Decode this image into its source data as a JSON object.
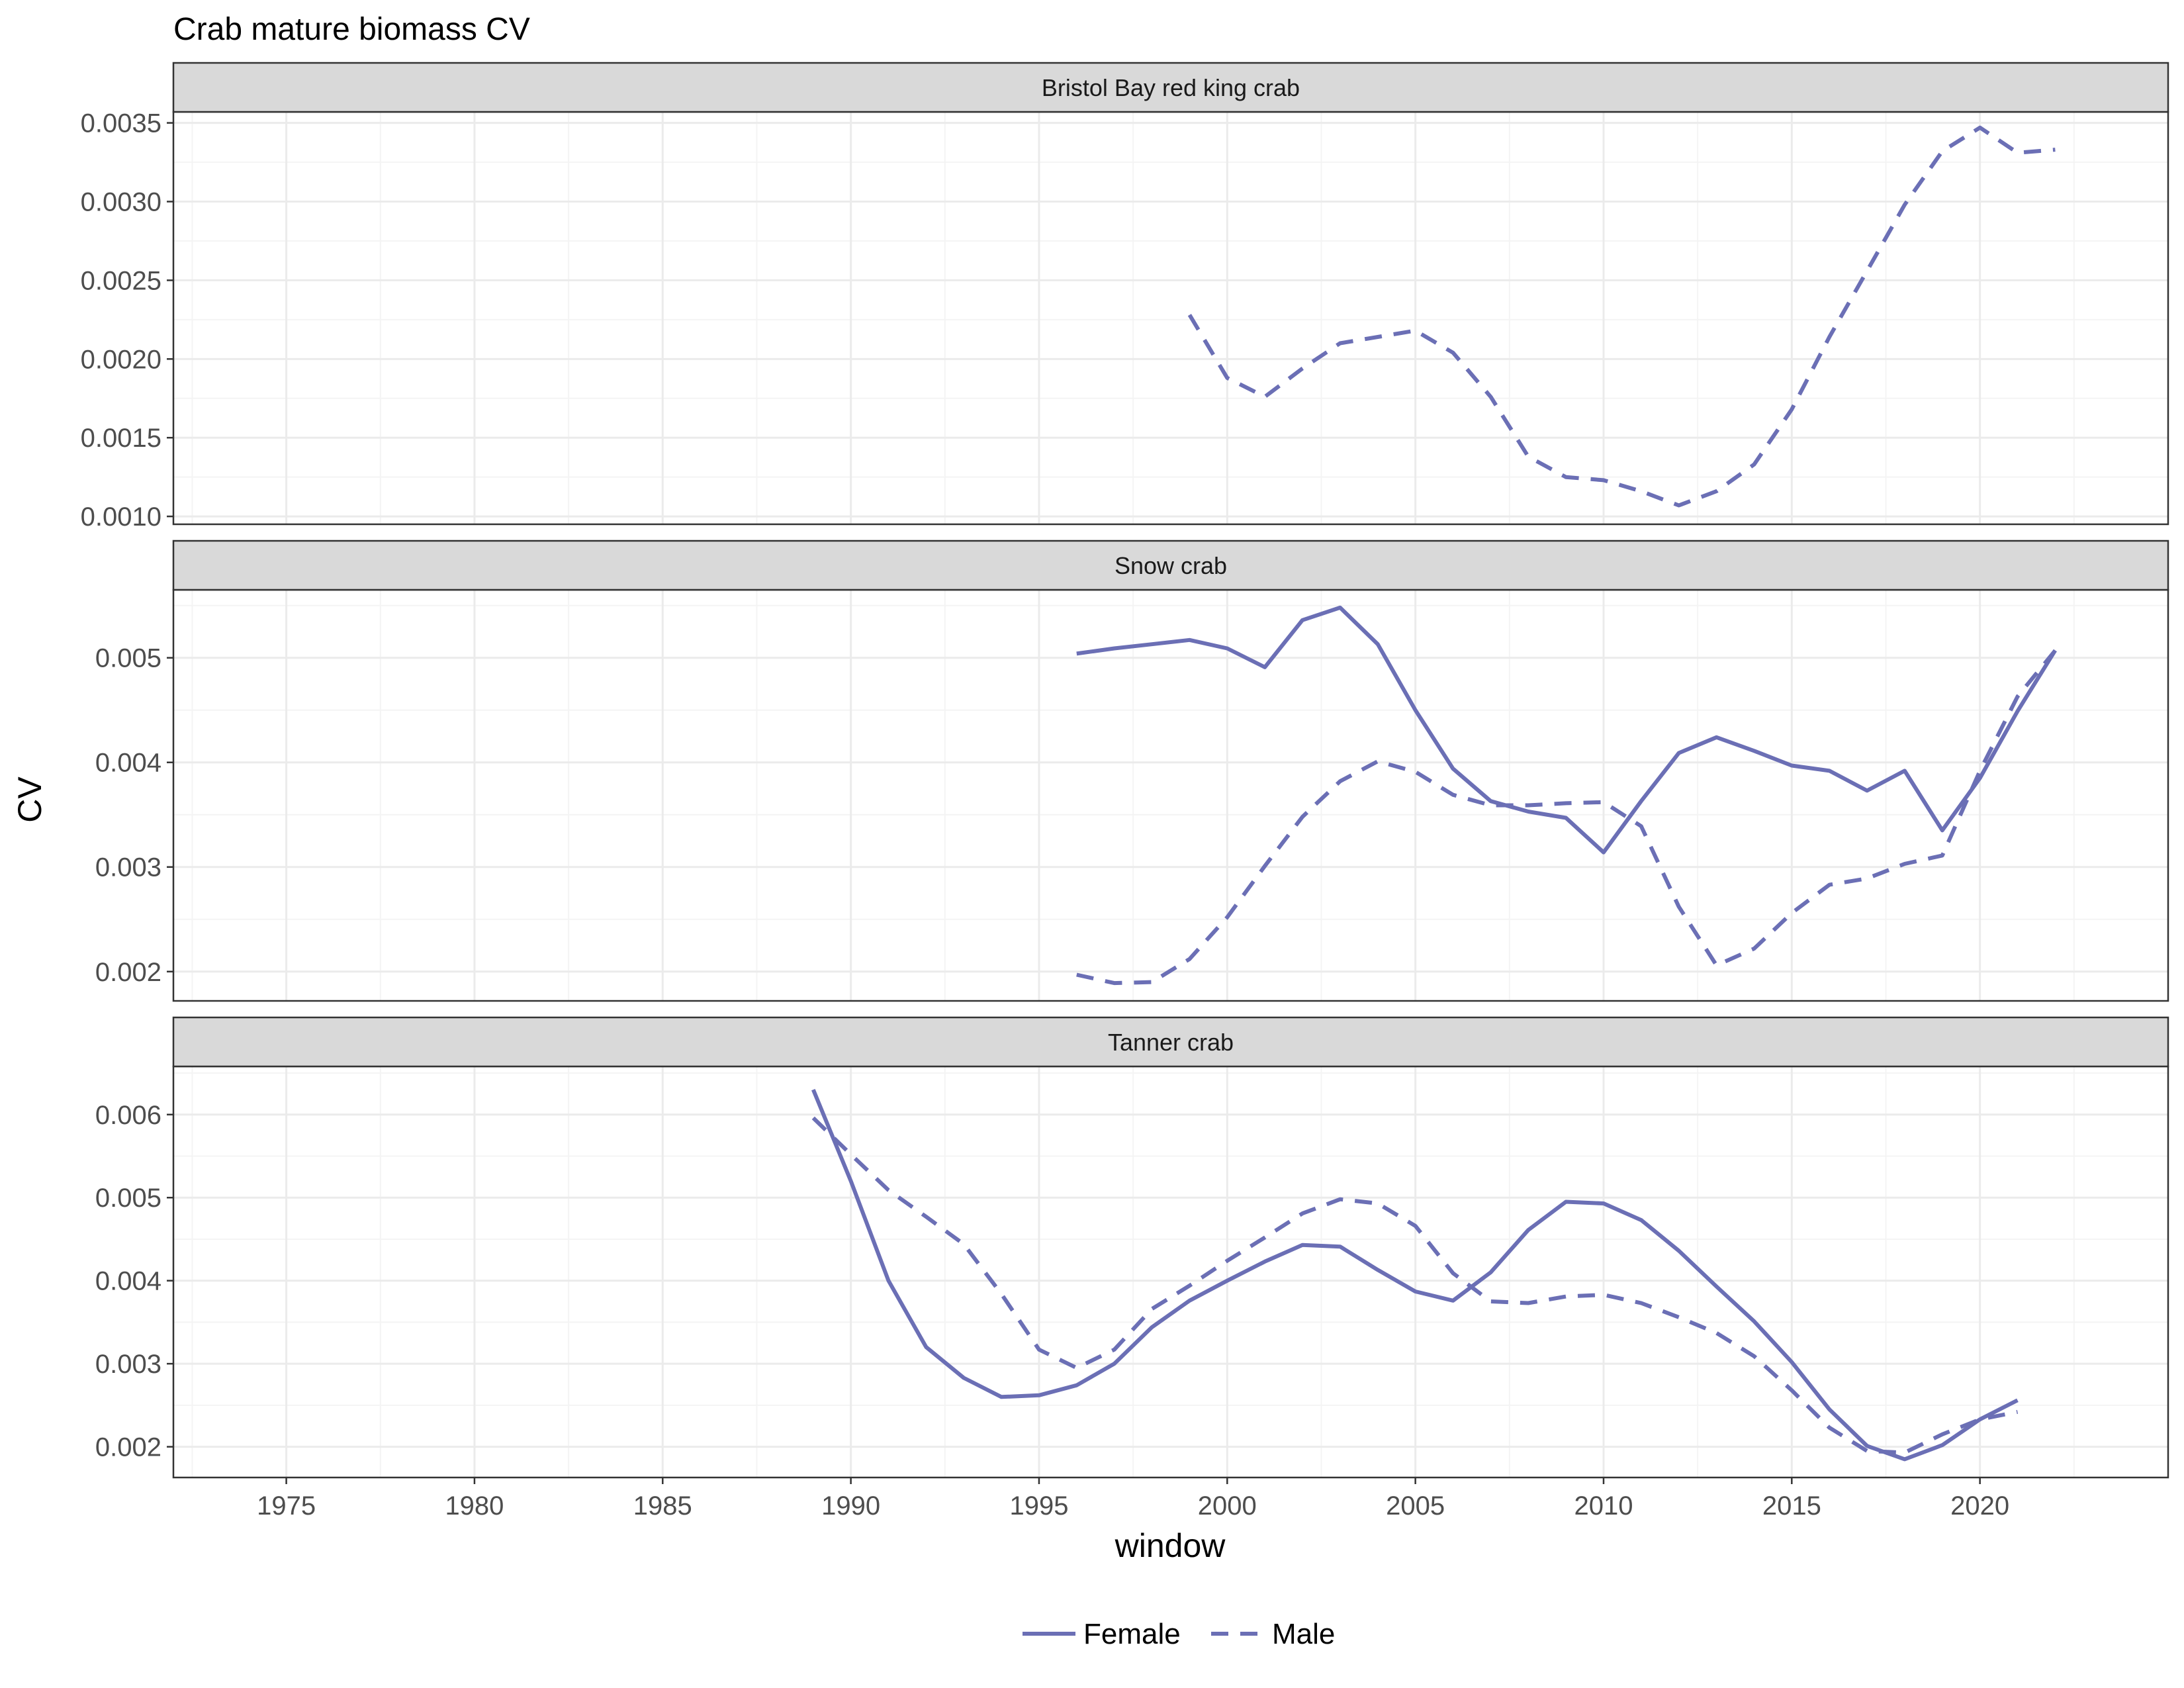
{
  "chart_data": {
    "type": "line",
    "title": "Crab mature biomass CV",
    "xlabel": "window",
    "ylabel": "CV",
    "xlim": [
      1972,
      2025
    ],
    "x_ticks": [
      1975,
      1980,
      1985,
      1990,
      1995,
      2000,
      2005,
      2010,
      2015,
      2020
    ],
    "grid": true,
    "legend_position": "bottom",
    "color": "#6b6fb5",
    "legend": [
      {
        "name": "Female",
        "dash": "solid"
      },
      {
        "name": "Male",
        "dash": "dashed"
      }
    ],
    "panels": [
      {
        "strip": "Bristol Bay red king crab",
        "ylim": [
          0.00095,
          0.00357
        ],
        "y_ticks": [
          0.001,
          0.0015,
          0.002,
          0.0025,
          0.003,
          0.0035
        ],
        "y_tick_labels": [
          "0.0010",
          "0.0015",
          "0.0020",
          "0.0025",
          "0.0030",
          "0.0035"
        ],
        "series": [
          {
            "name": "Male",
            "dash": "dashed",
            "x": [
              1999,
              2000,
              2001,
              2002,
              2003,
              2004,
              2005,
              2006,
              2007,
              2008,
              2009,
              2010,
              2011,
              2012,
              2013,
              2014,
              2015,
              2016,
              2017,
              2018,
              2019,
              2020,
              2021,
              2022
            ],
            "y": [
              0.00228,
              0.00188,
              0.00176,
              0.00194,
              0.0021,
              0.00214,
              0.00218,
              0.00204,
              0.00176,
              0.00138,
              0.00125,
              0.00123,
              0.00116,
              0.00107,
              0.00116,
              0.00133,
              0.00168,
              0.00214,
              0.00256,
              0.00298,
              0.00332,
              0.00347,
              0.00331,
              0.00333
            ]
          }
        ]
      },
      {
        "strip": "Snow crab",
        "ylim": [
          0.00172,
          0.00565
        ],
        "y_ticks": [
          0.002,
          0.003,
          0.004,
          0.005
        ],
        "y_tick_labels": [
          "0.002",
          "0.003",
          "0.004",
          "0.005"
        ],
        "series": [
          {
            "name": "Female",
            "dash": "solid",
            "x": [
              1996,
              1997,
              1998,
              1999,
              2000,
              2001,
              2002,
              2003,
              2004,
              2005,
              2006,
              2007,
              2008,
              2009,
              2010,
              2011,
              2012,
              2013,
              2014,
              2015,
              2016,
              2017,
              2018,
              2019,
              2020,
              2021,
              2022
            ],
            "y": [
              0.00504,
              0.00509,
              0.00513,
              0.00517,
              0.00509,
              0.00491,
              0.00536,
              0.00548,
              0.00513,
              0.0045,
              0.00394,
              0.00363,
              0.00353,
              0.00347,
              0.00314,
              0.00363,
              0.00409,
              0.00424,
              0.00411,
              0.00397,
              0.00392,
              0.00373,
              0.00392,
              0.00335,
              0.00385,
              0.00449,
              0.00507
            ]
          },
          {
            "name": "Male",
            "dash": "dashed",
            "x": [
              1996,
              1997,
              1998,
              1999,
              2000,
              2001,
              2002,
              2003,
              2004,
              2005,
              2006,
              2007,
              2008,
              2009,
              2010,
              2011,
              2012,
              2013,
              2014,
              2015,
              2016,
              2017,
              2018,
              2019,
              2020,
              2021,
              2022
            ],
            "y": [
              0.00197,
              0.00189,
              0.0019,
              0.00212,
              0.00252,
              0.00301,
              0.00348,
              0.00382,
              0.00401,
              0.00391,
              0.00369,
              0.00359,
              0.00359,
              0.00361,
              0.00362,
              0.00339,
              0.00262,
              0.00206,
              0.00222,
              0.00256,
              0.00283,
              0.00289,
              0.00303,
              0.00311,
              0.00392,
              0.00463,
              0.00507
            ]
          }
        ]
      },
      {
        "strip": "Tanner crab",
        "ylim": [
          0.00163,
          0.00658
        ],
        "y_ticks": [
          0.002,
          0.003,
          0.004,
          0.005,
          0.006
        ],
        "y_tick_labels": [
          "0.002",
          "0.003",
          "0.004",
          "0.005",
          "0.006"
        ],
        "series": [
          {
            "name": "Female",
            "dash": "solid",
            "x": [
              1989,
              1990,
              1991,
              1992,
              1993,
              1994,
              1995,
              1996,
              1997,
              1998,
              1999,
              2000,
              2001,
              2002,
              2003,
              2004,
              2005,
              2006,
              2007,
              2008,
              2009,
              2010,
              2011,
              2012,
              2013,
              2014,
              2015,
              2016,
              2017,
              2018,
              2019,
              2020,
              2021
            ],
            "y": [
              0.0063,
              0.0052,
              0.004,
              0.0032,
              0.00283,
              0.0026,
              0.00262,
              0.00274,
              0.003,
              0.00344,
              0.00376,
              0.004,
              0.00423,
              0.00443,
              0.00441,
              0.00413,
              0.00387,
              0.00376,
              0.0041,
              0.00461,
              0.00495,
              0.00493,
              0.00473,
              0.00436,
              0.00393,
              0.00351,
              0.00302,
              0.00245,
              0.00201,
              0.00185,
              0.00202,
              0.00233,
              0.00256
            ]
          },
          {
            "name": "Male",
            "dash": "dashed",
            "x": [
              1989,
              1990,
              1991,
              1992,
              1993,
              1994,
              1995,
              1996,
              1997,
              1998,
              1999,
              2000,
              2001,
              2002,
              2003,
              2004,
              2005,
              2006,
              2007,
              2008,
              2009,
              2010,
              2011,
              2012,
              2013,
              2014,
              2015,
              2016,
              2017,
              2018,
              2019,
              2020,
              2021
            ],
            "y": [
              0.00596,
              0.00552,
              0.00509,
              0.00477,
              0.00444,
              0.00384,
              0.00317,
              0.00295,
              0.00317,
              0.00366,
              0.00394,
              0.00424,
              0.00452,
              0.00481,
              0.00498,
              0.00493,
              0.00466,
              0.00409,
              0.00375,
              0.00373,
              0.00381,
              0.00383,
              0.00373,
              0.00356,
              0.00337,
              0.00309,
              0.00268,
              0.00223,
              0.00195,
              0.00193,
              0.00215,
              0.00233,
              0.00242
            ]
          }
        ]
      }
    ]
  }
}
